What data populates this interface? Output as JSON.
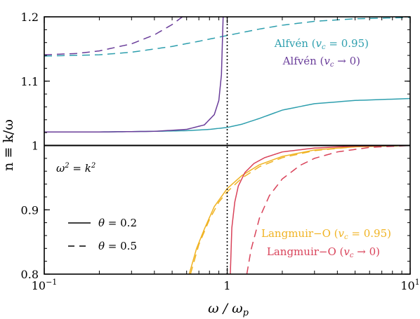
{
  "chart_data": {
    "type": "line",
    "xlabel": "ω / ω_p",
    "ylabel": "n ≡ k/ω",
    "xscale": "log",
    "xlim": [
      0.1,
      10
    ],
    "ylim": [
      0.8,
      1.2
    ],
    "xticks": [
      {
        "value": 0.1,
        "label": "10",
        "sup": "−1"
      },
      {
        "value": 1,
        "label": "1",
        "sup": ""
      },
      {
        "value": 10,
        "label": "10",
        "sup": "1"
      }
    ],
    "yticks": [
      {
        "value": 0.8,
        "label": "0.8"
      },
      {
        "value": 0.9,
        "label": "0.9"
      },
      {
        "value": 1.0,
        "label": "1"
      },
      {
        "value": 1.1,
        "label": "1.1"
      },
      {
        "value": 1.2,
        "label": "1.2"
      }
    ],
    "reference_lines": [
      {
        "kind": "horizontal",
        "y": 1.0,
        "style": "solid",
        "label": "ω² = k²"
      },
      {
        "kind": "vertical",
        "x": 1.0,
        "style": "dotted"
      }
    ],
    "annotation": "ω² = k²",
    "series_labels": [
      {
        "key": "alfven_095",
        "text": "Alfvén  (v_c = 0.95)",
        "color": "#2e9fae"
      },
      {
        "key": "alfven_0",
        "text": "Alfvén  (v_c → 0)",
        "color": "#6a3d9a"
      },
      {
        "key": "langmuir_095",
        "text": "Langmuir−O (v_c = 0.95)",
        "color": "#f0b323"
      },
      {
        "key": "langmuir_0",
        "text": "Langmuir−O (v_c → 0)",
        "color": "#d9435a"
      }
    ],
    "linestyle_legend": [
      {
        "style": "solid",
        "text": "θ = 0.2"
      },
      {
        "style": "dashed",
        "text": "θ = 0.5"
      }
    ],
    "series": [
      {
        "key": "alfven_095",
        "style": "solid",
        "color": "#2e9fae",
        "x": [
          0.1,
          0.2,
          0.4,
          0.6,
          0.8,
          1.0,
          1.2,
          1.5,
          2,
          3,
          5,
          10
        ],
        "y": [
          1.021,
          1.021,
          1.022,
          1.023,
          1.025,
          1.028,
          1.033,
          1.042,
          1.055,
          1.065,
          1.07,
          1.073
        ]
      },
      {
        "key": "alfven_095",
        "style": "dashed",
        "color": "#2e9fae",
        "x": [
          0.1,
          0.2,
          0.3,
          0.5,
          0.7,
          1.0,
          1.5,
          2,
          3,
          5,
          10
        ],
        "y": [
          1.139,
          1.141,
          1.145,
          1.154,
          1.162,
          1.171,
          1.181,
          1.187,
          1.193,
          1.197,
          1.199
        ]
      },
      {
        "key": "alfven_0",
        "style": "solid",
        "color": "#6a3d9a",
        "x": [
          0.1,
          0.2,
          0.4,
          0.6,
          0.75,
          0.85,
          0.9,
          0.93,
          0.95
        ],
        "y": [
          1.021,
          1.021,
          1.022,
          1.025,
          1.032,
          1.048,
          1.07,
          1.11,
          1.2
        ]
      },
      {
        "key": "alfven_0",
        "style": "dashed",
        "color": "#6a3d9a",
        "x": [
          0.1,
          0.15,
          0.2,
          0.3,
          0.4,
          0.5,
          0.6
        ],
        "y": [
          1.141,
          1.143,
          1.147,
          1.158,
          1.172,
          1.188,
          1.205
        ]
      },
      {
        "key": "langmuir_095",
        "style": "solid",
        "color": "#f0b323",
        "x": [
          0.62,
          0.68,
          0.75,
          0.85,
          1.0,
          1.2,
          1.5,
          2,
          3,
          5,
          10
        ],
        "y": [
          0.8,
          0.84,
          0.87,
          0.905,
          0.933,
          0.953,
          0.97,
          0.983,
          0.993,
          0.998,
          1.0
        ]
      },
      {
        "key": "langmuir_095",
        "style": "dashed",
        "color": "#f0b323",
        "x": [
          0.63,
          0.7,
          0.8,
          0.9,
          1.0,
          1.2,
          1.5,
          2,
          3,
          5,
          10
        ],
        "y": [
          0.8,
          0.846,
          0.885,
          0.912,
          0.928,
          0.949,
          0.967,
          0.981,
          0.992,
          0.998,
          1.0
        ]
      },
      {
        "key": "langmuir_0",
        "style": "solid",
        "color": "#d9435a",
        "x": [
          1.04,
          1.06,
          1.1,
          1.15,
          1.25,
          1.4,
          1.6,
          2,
          3,
          5,
          10
        ],
        "y": [
          0.8,
          0.872,
          0.912,
          0.937,
          0.958,
          0.972,
          0.981,
          0.99,
          0.996,
          0.999,
          1.0
        ]
      },
      {
        "key": "langmuir_0",
        "style": "dashed",
        "color": "#d9435a",
        "x": [
          1.28,
          1.35,
          1.5,
          1.7,
          2,
          2.5,
          3,
          4,
          6,
          10
        ],
        "y": [
          0.8,
          0.838,
          0.887,
          0.922,
          0.948,
          0.969,
          0.98,
          0.99,
          0.997,
          1.0
        ]
      }
    ]
  }
}
